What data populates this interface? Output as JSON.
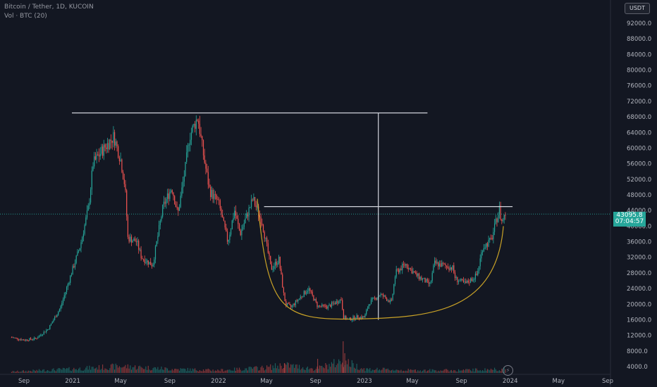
{
  "legend": {
    "symbol_line": "Bitcoin / Tether, 1D, KUCOIN",
    "volume_line": "Vol · BTC (20)"
  },
  "currency_button": "USDT",
  "price_tag": {
    "price": "43095.8",
    "countdown": "07:04:57"
  },
  "icons": {
    "flash": "lightning-icon"
  },
  "colors": {
    "background": "#131722",
    "up": "#26a69a",
    "down": "#ef5350",
    "text": "#b2b5be",
    "cup_curve": "#c9a227",
    "lines": "#d1d4dc"
  },
  "chart_data": {
    "type": "line",
    "title": "Bitcoin / Tether, 1D, KUCOIN",
    "style": "candlestick",
    "ylim": [
      2000,
      96000
    ],
    "y_ticks": [
      "92000.0",
      "88000.0",
      "84000.0",
      "80000.0",
      "76000.0",
      "72000.0",
      "68000.0",
      "64000.0",
      "60000.0",
      "56000.0",
      "52000.0",
      "48000.0",
      "44000.0",
      "40000.0",
      "36000.0",
      "32000.0",
      "28000.0",
      "24000.0",
      "20000.0",
      "16000.0",
      "12000.0",
      "8000.0",
      "4000.0"
    ],
    "x_ticks": [
      "Sep",
      "2021",
      "May",
      "Sep",
      "2022",
      "May",
      "Sep",
      "2023",
      "May",
      "Sep",
      "2024",
      "May",
      "Sep"
    ],
    "x_tick_dates": [
      "2020-09-01",
      "2021-01-01",
      "2021-05-01",
      "2021-09-01",
      "2022-01-01",
      "2022-05-01",
      "2022-09-01",
      "2023-01-01",
      "2023-05-01",
      "2023-09-01",
      "2024-01-01",
      "2024-05-01",
      "2024-09-01"
    ],
    "series": [
      {
        "x": [
          "2020-08-01",
          "2020-09-01",
          "2020-10-01",
          "2020-11-01",
          "2020-12-01",
          "2021-01-01",
          "2021-01-20",
          "2021-02-10",
          "2021-02-21",
          "2021-03-13",
          "2021-04-14",
          "2021-05-01",
          "2021-05-12",
          "2021-05-19",
          "2021-06-10",
          "2021-06-22",
          "2021-07-20",
          "2021-08-15",
          "2021-09-06",
          "2021-09-21",
          "2021-10-10",
          "2021-10-20",
          "2021-11-10",
          "2021-11-26",
          "2021-12-10",
          "2022-01-01",
          "2022-01-24",
          "2022-02-10",
          "2022-02-24",
          "2022-03-28",
          "2022-04-20",
          "2022-05-09",
          "2022-05-12",
          "2022-06-01",
          "2022-06-13",
          "2022-06-18",
          "2022-07-01",
          "2022-08-14",
          "2022-09-06",
          "2022-10-01",
          "2022-11-05",
          "2022-11-09",
          "2022-11-21",
          "2022-12-15",
          "2023-01-01",
          "2023-01-14",
          "2023-02-10",
          "2023-03-10",
          "2023-03-20",
          "2023-04-14",
          "2023-05-10",
          "2023-06-15",
          "2023-06-25",
          "2023-08-10",
          "2023-08-17",
          "2023-09-11",
          "2023-10-10",
          "2023-10-24",
          "2023-11-15",
          "2023-12-05",
          "2023-12-10",
          "2023-12-20"
        ],
        "values": [
          11500,
          10800,
          11200,
          13700,
          19000,
          29000,
          35000,
          45000,
          56000,
          59000,
          63000,
          57000,
          50000,
          37000,
          36000,
          32000,
          30000,
          45000,
          50000,
          43000,
          55000,
          63000,
          68000,
          57000,
          49000,
          46000,
          36000,
          44000,
          38000,
          47000,
          41000,
          31000,
          29000,
          31500,
          22500,
          20000,
          19200,
          24000,
          19500,
          19300,
          21300,
          16800,
          16000,
          16800,
          16600,
          20500,
          22500,
          20500,
          28000,
          30300,
          27500,
          25000,
          30500,
          29300,
          26500,
          25200,
          27500,
          34500,
          36500,
          44500,
          41000,
          43100
        ]
      },
      {
        "name": "Vol · BTC (20)",
        "x": [
          "2020-08-01",
          "2021-01-01",
          "2021-05-01",
          "2021-09-01",
          "2022-01-01",
          "2022-05-01",
          "2022-06-15",
          "2022-09-01",
          "2022-11-09",
          "2023-01-01",
          "2023-05-01",
          "2023-09-01",
          "2023-12-20"
        ],
        "values": [
          1,
          3,
          5,
          3,
          2,
          4,
          6,
          3,
          9,
          3,
          2,
          2,
          3
        ]
      }
    ],
    "annotations": [
      {
        "kind": "horizontal-line",
        "y": 69000,
        "x_from": "2020-12-30",
        "x_to": "2023-06-08"
      },
      {
        "kind": "horizontal-line",
        "y": 45000,
        "x_from": "2022-04-25",
        "x_to": "2024-01-07"
      },
      {
        "kind": "vertical-line",
        "x": "2023-02-05",
        "y_from": 45000,
        "y_to": 69000
      },
      {
        "kind": "vertical-line",
        "x": "2023-02-05",
        "y_from": 16000,
        "y_to": 45000
      },
      {
        "kind": "cup-curve",
        "from": "2022-04-08",
        "bottom": "2022-12-15",
        "to": "2023-12-15"
      }
    ]
  }
}
